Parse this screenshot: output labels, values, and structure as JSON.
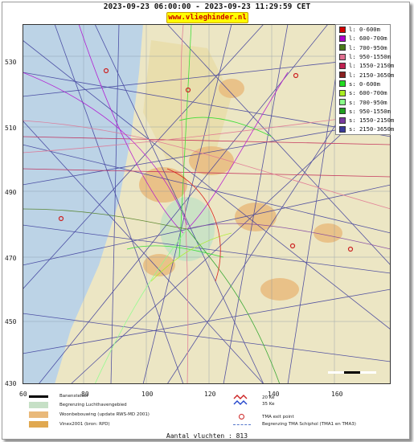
{
  "header": {
    "title": "2023-09-23 06:00:00 - 2023-09-23 11:29:59 CET",
    "site": "www.vlieghinder.nl"
  },
  "axes": {
    "y_ticks": [
      "530",
      "510",
      "490",
      "470",
      "450",
      "430"
    ],
    "x_ticks": [
      "60",
      "80",
      "100",
      "120",
      "140",
      "160"
    ]
  },
  "legend": [
    {
      "label": "l: 0-600m",
      "color": "#d40000"
    },
    {
      "label": "l: 600-700m",
      "color": "#b000d0"
    },
    {
      "label": "l: 700-950m",
      "color": "#4a7a1a"
    },
    {
      "label": "l: 950-1550m",
      "color": "#e07090"
    },
    {
      "label": "l: 1550-2150m",
      "color": "#c02050"
    },
    {
      "label": "l: 2150-3650m",
      "color": "#8a2020"
    },
    {
      "label": "s: 0-600m",
      "color": "#22dd22"
    },
    {
      "label": "s: 600-700m",
      "color": "#aaee22"
    },
    {
      "label": "s: 700-950m",
      "color": "#88ff88"
    },
    {
      "label": "s: 950-1550m",
      "color": "#20a020"
    },
    {
      "label": "s: 1550-2150m",
      "color": "#7a3aa0"
    },
    {
      "label": "s: 2150-3650m",
      "color": "#3a3a9a"
    }
  ],
  "map_legend": {
    "runway": "Banenstelsel",
    "airport_boundary": "Begrenzing Luchthavengebied",
    "residential": "Woonbebouwing (update RWS-MD 2001)",
    "vinex": "Vinex2001 (bron: RPD)",
    "noise_contours": [
      "20 Ke",
      "35 Ke"
    ],
    "tma_exit": "TMA exit point",
    "tma_boundary": "Begrenzing TMA Schiphol  (TMA1 en TMA3)"
  },
  "footer": {
    "flights": "Aantal vluchten : 813"
  }
}
